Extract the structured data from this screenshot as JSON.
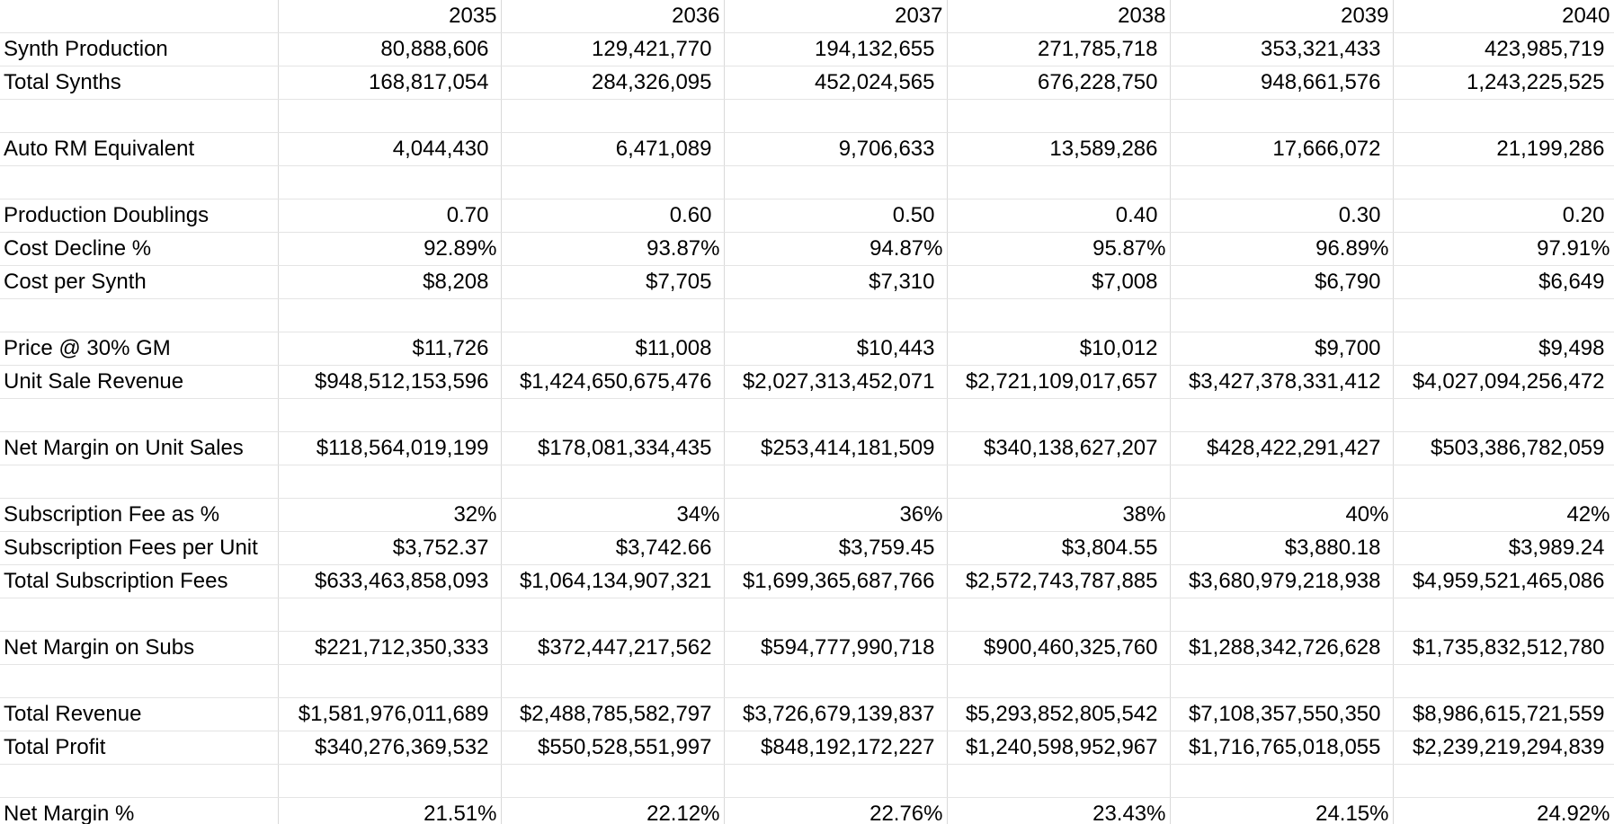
{
  "spreadsheet": {
    "years": [
      "2035",
      "2036",
      "2037",
      "2038",
      "2039",
      "2040"
    ],
    "rows": [
      {
        "label": "Synth Production",
        "values": [
          "80,888,606",
          "129,421,770",
          "194,132,655",
          "271,785,718",
          "353,321,433",
          "423,985,719"
        ]
      },
      {
        "label": "Total Synths",
        "values": [
          "168,817,054",
          "284,326,095",
          "452,024,565",
          "676,228,750",
          "948,661,576",
          "1,243,225,525"
        ]
      },
      {
        "label": "",
        "values": [
          "",
          "",
          "",
          "",
          "",
          ""
        ]
      },
      {
        "label": "Auto RM Equivalent",
        "values": [
          "4,044,430",
          "6,471,089",
          "9,706,633",
          "13,589,286",
          "17,666,072",
          "21,199,286"
        ]
      },
      {
        "label": "",
        "values": [
          "",
          "",
          "",
          "",
          "",
          ""
        ]
      },
      {
        "label": "Production Doublings",
        "values": [
          "0.70",
          "0.60",
          "0.50",
          "0.40",
          "0.30",
          "0.20"
        ]
      },
      {
        "label": "Cost Decline %",
        "values": [
          "92.89%",
          "93.87%",
          "94.87%",
          "95.87%",
          "96.89%",
          "97.91%"
        ]
      },
      {
        "label": "Cost per Synth",
        "values": [
          "$8,208",
          "$7,705",
          "$7,310",
          "$7,008",
          "$6,790",
          "$6,649"
        ]
      },
      {
        "label": "",
        "values": [
          "",
          "",
          "",
          "",
          "",
          ""
        ]
      },
      {
        "label": "Price @ 30% GM",
        "values": [
          "$11,726",
          "$11,008",
          "$10,443",
          "$10,012",
          "$9,700",
          "$9,498"
        ]
      },
      {
        "label": "Unit Sale Revenue",
        "values": [
          "$948,512,153,596",
          "$1,424,650,675,476",
          "$2,027,313,452,071",
          "$2,721,109,017,657",
          "$3,427,378,331,412",
          "$4,027,094,256,472"
        ]
      },
      {
        "label": "",
        "values": [
          "",
          "",
          "",
          "",
          "",
          ""
        ]
      },
      {
        "label": "Net Margin on Unit Sales",
        "values": [
          "$118,564,019,199",
          "$178,081,334,435",
          "$253,414,181,509",
          "$340,138,627,207",
          "$428,422,291,427",
          "$503,386,782,059"
        ]
      },
      {
        "label": "",
        "values": [
          "",
          "",
          "",
          "",
          "",
          ""
        ]
      },
      {
        "label": "Subscription Fee as %",
        "values": [
          "32%",
          "34%",
          "36%",
          "38%",
          "40%",
          "42%"
        ]
      },
      {
        "label": "Subscription Fees per Unit",
        "values": [
          "$3,752.37",
          "$3,742.66",
          "$3,759.45",
          "$3,804.55",
          "$3,880.18",
          "$3,989.24"
        ]
      },
      {
        "label": "Total Subscription Fees",
        "values": [
          "$633,463,858,093",
          "$1,064,134,907,321",
          "$1,699,365,687,766",
          "$2,572,743,787,885",
          "$3,680,979,218,938",
          "$4,959,521,465,086"
        ]
      },
      {
        "label": "",
        "values": [
          "",
          "",
          "",
          "",
          "",
          ""
        ]
      },
      {
        "label": "Net Margin on Subs",
        "values": [
          "$221,712,350,333",
          "$372,447,217,562",
          "$594,777,990,718",
          "$900,460,325,760",
          "$1,288,342,726,628",
          "$1,735,832,512,780"
        ]
      },
      {
        "label": "",
        "values": [
          "",
          "",
          "",
          "",
          "",
          ""
        ]
      },
      {
        "label": "Total Revenue",
        "values": [
          "$1,581,976,011,689",
          "$2,488,785,582,797",
          "$3,726,679,139,837",
          "$5,293,852,805,542",
          "$7,108,357,550,350",
          "$8,986,615,721,559"
        ]
      },
      {
        "label": "Total Profit",
        "values": [
          "$340,276,369,532",
          "$550,528,551,997",
          "$848,192,172,227",
          "$1,240,598,952,967",
          "$1,716,765,018,055",
          "$2,239,219,294,839"
        ]
      },
      {
        "label": "",
        "values": [
          "",
          "",
          "",
          "",
          "",
          ""
        ]
      },
      {
        "label": "Net Margin %",
        "values": [
          "21.51%",
          "22.12%",
          "22.76%",
          "23.43%",
          "24.15%",
          "24.92%"
        ]
      }
    ]
  },
  "colors": {
    "gridline": "#d9d9d9",
    "text": "#000000",
    "background": "#ffffff"
  }
}
